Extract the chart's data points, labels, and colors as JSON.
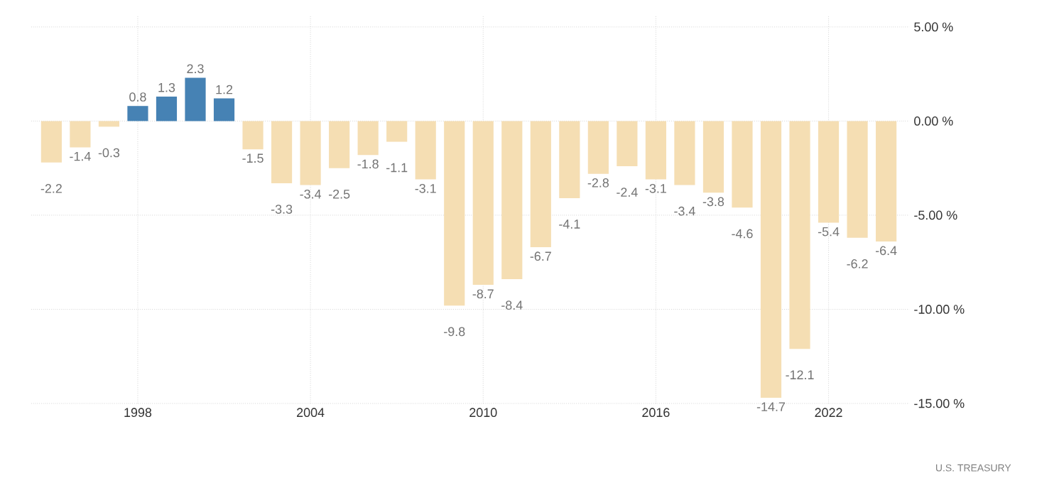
{
  "chart_data": {
    "type": "bar",
    "x": [
      1995,
      1996,
      1997,
      1998,
      1999,
      2000,
      2001,
      2002,
      2003,
      2004,
      2005,
      2006,
      2007,
      2008,
      2009,
      2010,
      2011,
      2012,
      2013,
      2014,
      2015,
      2016,
      2017,
      2018,
      2019,
      2020,
      2021,
      2022,
      2023,
      2024
    ],
    "values": [
      -2.2,
      -1.4,
      -0.3,
      0.8,
      1.3,
      2.3,
      1.2,
      -1.5,
      -3.3,
      -3.4,
      -2.5,
      -1.8,
      -1.1,
      -3.1,
      -9.8,
      -8.7,
      -8.4,
      -6.7,
      -4.1,
      -2.8,
      -2.4,
      -3.1,
      -3.4,
      -3.8,
      -4.6,
      -14.7,
      -12.1,
      -5.4,
      -6.2,
      -6.4
    ],
    "colors": [
      "#f5deb3",
      "#f5deb3",
      "#f5deb3",
      "#4682b4",
      "#4682b4",
      "#4682b4",
      "#4682b4",
      "#f5deb3",
      "#f5deb3",
      "#f5deb3",
      "#f5deb3",
      "#f5deb3",
      "#f5deb3",
      "#f5deb3",
      "#f5deb3",
      "#f5deb3",
      "#f5deb3",
      "#f5deb3",
      "#f5deb3",
      "#f5deb3",
      "#f5deb3",
      "#f5deb3",
      "#f5deb3",
      "#f5deb3",
      "#f5deb3",
      "#f5deb3",
      "#f5deb3",
      "#f5deb3",
      "#f5deb3",
      "#f5deb3"
    ],
    "data_labels": true,
    "xlim": [
      1994.3,
      2024.8
    ],
    "xticks": [
      1998,
      2004,
      2010,
      2016,
      2022
    ],
    "ylim": [
      -15,
      5.6
    ],
    "yticks": [
      {
        "value": 5,
        "label": "5.00 %"
      },
      {
        "value": 0,
        "label": "0.00 %"
      },
      {
        "value": -5,
        "label": "-5.00 %"
      },
      {
        "value": -10,
        "label": "-10.00 %"
      },
      {
        "value": -15,
        "label": "-15.00 %"
      }
    ],
    "grid": true,
    "annotations": [
      "U.S. TREASURY"
    ]
  }
}
